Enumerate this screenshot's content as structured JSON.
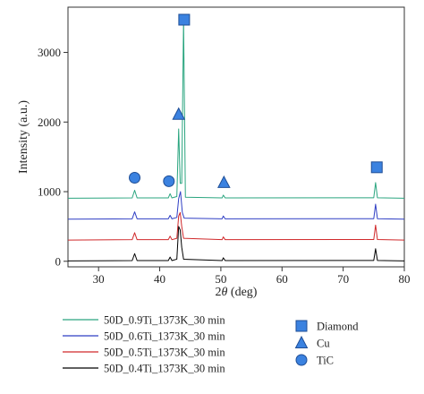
{
  "chart_data": {
    "type": "line",
    "xlabel_prefix": "2",
    "xlabel_symbol": "θ",
    "xlabel_unit": " (deg)",
    "ylabel": "Intensity (a.u.)",
    "xlim": [
      25,
      80
    ],
    "ylim": [
      -80,
      3650
    ],
    "xticks": [
      30,
      40,
      50,
      60,
      70,
      80
    ],
    "yticks": [
      0,
      1000,
      2000,
      3000
    ],
    "grid": false,
    "legend_position": "bottom-left",
    "series": [
      {
        "name": "50D_0.9Ti_1373K_30 min",
        "color": "#2aa57f",
        "points": [
          [
            25,
            905
          ],
          [
            35.5,
            910
          ],
          [
            35.9,
            1020
          ],
          [
            36.3,
            910
          ],
          [
            41.4,
            910
          ],
          [
            41.7,
            970
          ],
          [
            42.0,
            910
          ],
          [
            42.8,
            930
          ],
          [
            43.1,
            1900
          ],
          [
            43.35,
            1120
          ],
          [
            43.6,
            1120
          ],
          [
            43.9,
            3480
          ],
          [
            44.2,
            920
          ],
          [
            50.2,
            910
          ],
          [
            50.4,
            950
          ],
          [
            50.7,
            910
          ],
          [
            75.0,
            912
          ],
          [
            75.3,
            1130
          ],
          [
            75.6,
            912
          ],
          [
            80,
            905
          ]
        ]
      },
      {
        "name": "50D_0.6Ti_1373K_30 min",
        "color": "#2f3ec4",
        "points": [
          [
            25,
            605
          ],
          [
            35.5,
            610
          ],
          [
            35.9,
            710
          ],
          [
            36.3,
            610
          ],
          [
            41.4,
            610
          ],
          [
            41.7,
            660
          ],
          [
            42.0,
            610
          ],
          [
            42.8,
            630
          ],
          [
            43.1,
            900
          ],
          [
            43.4,
            1000
          ],
          [
            43.7,
            700
          ],
          [
            44.0,
            620
          ],
          [
            50.2,
            610
          ],
          [
            50.4,
            650
          ],
          [
            50.7,
            610
          ],
          [
            75.0,
            612
          ],
          [
            75.3,
            820
          ],
          [
            75.6,
            612
          ],
          [
            80,
            605
          ]
        ]
      },
      {
        "name": "50D_0.5Ti_1373K_30 min",
        "color": "#d0292b",
        "points": [
          [
            25,
            305
          ],
          [
            35.5,
            310
          ],
          [
            35.9,
            410
          ],
          [
            36.3,
            310
          ],
          [
            41.4,
            310
          ],
          [
            41.7,
            360
          ],
          [
            42.0,
            310
          ],
          [
            42.8,
            330
          ],
          [
            43.1,
            650
          ],
          [
            43.35,
            700
          ],
          [
            43.6,
            500
          ],
          [
            43.9,
            330
          ],
          [
            50.2,
            310
          ],
          [
            50.4,
            350
          ],
          [
            50.7,
            310
          ],
          [
            75.0,
            312
          ],
          [
            75.3,
            520
          ],
          [
            75.6,
            312
          ],
          [
            80,
            305
          ]
        ]
      },
      {
        "name": "50D_0.4Ti_1373K_30 min",
        "color": "#000000",
        "points": [
          [
            25,
            5
          ],
          [
            35.5,
            10
          ],
          [
            35.9,
            110
          ],
          [
            36.3,
            10
          ],
          [
            41.4,
            10
          ],
          [
            41.7,
            60
          ],
          [
            42.0,
            10
          ],
          [
            42.8,
            30
          ],
          [
            43.1,
            500
          ],
          [
            43.35,
            450
          ],
          [
            43.6,
            200
          ],
          [
            43.9,
            30
          ],
          [
            50.2,
            10
          ],
          [
            50.4,
            50
          ],
          [
            50.7,
            10
          ],
          [
            75.0,
            12
          ],
          [
            75.3,
            180
          ],
          [
            75.6,
            12
          ],
          [
            80,
            5
          ]
        ]
      }
    ],
    "phase_markers": [
      {
        "phase": "Diamond",
        "shape": "square",
        "x": 44.0,
        "y": 3470
      },
      {
        "phase": "Diamond",
        "shape": "square",
        "x": 75.5,
        "y": 1350
      },
      {
        "phase": "Cu",
        "shape": "triangle",
        "x": 43.1,
        "y": 2110
      },
      {
        "phase": "Cu",
        "shape": "triangle",
        "x": 50.5,
        "y": 1130
      },
      {
        "phase": "TiC",
        "shape": "circle",
        "x": 35.9,
        "y": 1200
      },
      {
        "phase": "TiC",
        "shape": "circle",
        "x": 41.5,
        "y": 1150
      }
    ],
    "marker_legend": [
      {
        "shape": "square",
        "label": "Diamond"
      },
      {
        "shape": "triangle",
        "label": "Cu"
      },
      {
        "shape": "circle",
        "label": "TiC"
      }
    ]
  },
  "colors": {
    "marker_fill": "#3b82e0",
    "marker_stroke": "#1f4e96",
    "axis": "#333333"
  }
}
